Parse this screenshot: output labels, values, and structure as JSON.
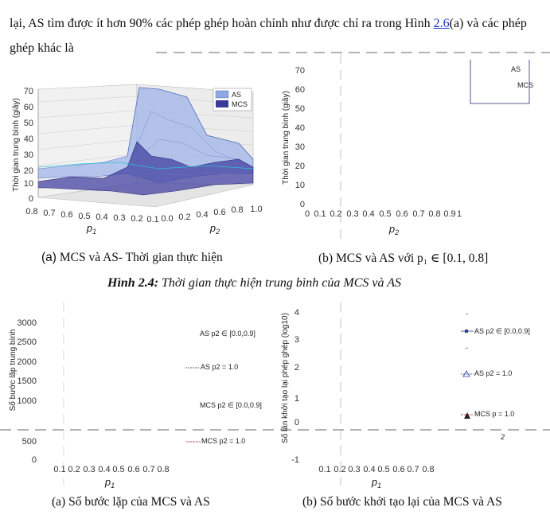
{
  "paragraph": {
    "text_before": "lại, AS tìm được ít hơn 90% các phép ghép hoàn chỉnh như được chỉ ra trong Hình ",
    "link": "2.6",
    "text_after": "(a) và các phép ghép khác là"
  },
  "figure_top": {
    "caption_a_prefix": "(a)",
    "caption_a": "MCS và AS- Thời gian thực hiện",
    "caption_b": "(b) MCS và AS với p₁ ∈ [0.1, 0.8]",
    "title_label": "Hình 2.4:",
    "title_text": "Thời gian thực hiện trung bình của MCS và AS"
  },
  "figure_bottom": {
    "caption_a": "(a) Số bước lặp của MCS và AS",
    "caption_b": "(b) Số bước khởi tạo lại của MCS và AS"
  },
  "chart_data": [
    {
      "type": "area",
      "ylabel": "Thời gian trung bình (giây)",
      "xlabel": "p1",
      "zlabel": "p2",
      "y_ticks": [
        "0",
        "10",
        "20",
        "30",
        "40",
        "50",
        "60",
        "70"
      ],
      "p1_ticks": [
        "0.8",
        "0.7",
        "0.6",
        "0.5",
        "0.4",
        "0.3",
        "0.2",
        "0.1"
      ],
      "p2_ticks": [
        "0.0",
        "0.2",
        "0.4",
        "0.6",
        "0.8",
        "1.0"
      ],
      "legend": [
        "AS",
        "MCS"
      ],
      "colors": {
        "AS": "#8fa8e0",
        "MCS": "#3b3a98"
      }
    },
    {
      "type": "line",
      "ylabel": "Thời gian trung bình (giây)",
      "xlabel": "p2",
      "y_ticks": [
        "0",
        "10",
        "20",
        "30",
        "40",
        "50",
        "60",
        "70"
      ],
      "x_ticks": [
        "0",
        "0.1",
        "0.2",
        "0.3",
        "0.4",
        "0.5",
        "0.6",
        "0.7",
        "0.8",
        "0.9",
        "1"
      ],
      "legend": [
        "AS",
        "MCS"
      ]
    },
    {
      "type": "line",
      "ylabel": "Số bước lặp trung bình",
      "xlabel": "p1",
      "y_ticks": [
        "3000",
        "2500",
        "2000",
        "1500",
        "1000",
        "500",
        "0"
      ],
      "x_ticks": [
        "0.1",
        "0.2",
        "0.3",
        "0.4",
        "0.5",
        "0.6",
        "0.7",
        "0.8"
      ],
      "legend": [
        "AS p2 ∈ [0.0,0.9]",
        "AS p2 = 1.0",
        "MCS p2 ∈ [0.0,0.9]",
        "MCS p2 = 1.0"
      ]
    },
    {
      "type": "line",
      "ylabel": "Số lần khởi tạo lại phép ghép (log10)",
      "xlabel": "p1",
      "y_ticks": [
        "4",
        "3",
        "2",
        "1",
        "0",
        "-1"
      ],
      "x_ticks": [
        "0.1",
        "0.2",
        "0.3",
        "0.4",
        "0.5",
        "0.6",
        "0.7",
        "0.8"
      ],
      "legend": [
        "AS p2 ∈ [0.0,0.9]",
        "AS p2 = 1.0",
        "MCS p = 1.0"
      ]
    }
  ]
}
